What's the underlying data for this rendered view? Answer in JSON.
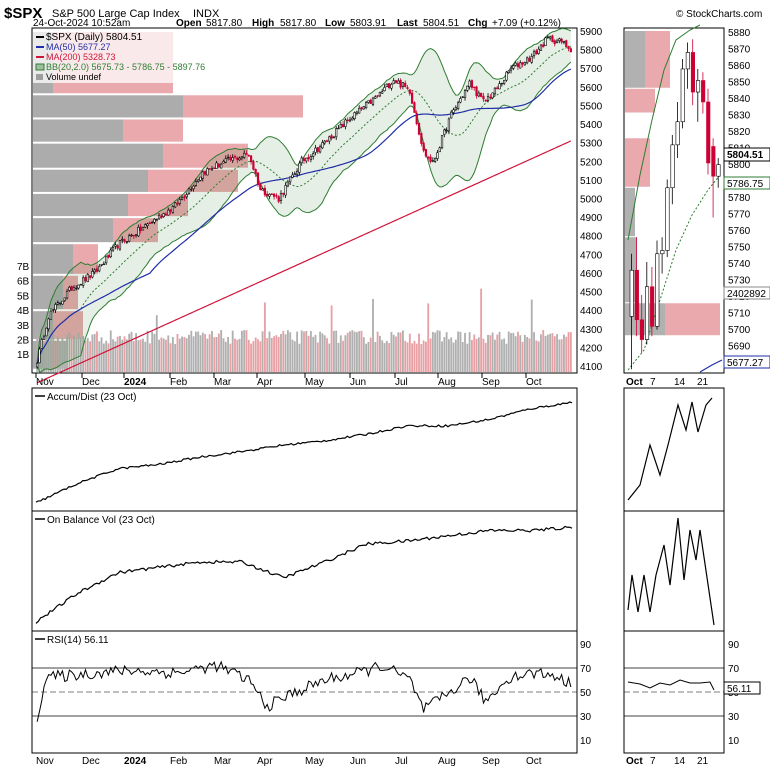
{
  "header": {
    "symbol": "$SPX",
    "name": "S&P 500 Large Cap Index",
    "exchange": "INDX",
    "date": "24-Oct-2024 10:52am",
    "open_label": "Open",
    "open": "5817.80",
    "high_label": "High",
    "high": "5817.80",
    "low_label": "Low",
    "low": "5803.91",
    "last_label": "Last",
    "last": "5804.51",
    "chg_label": "Chg",
    "chg": "+7.09 (+0.12%)",
    "watermark": "© StockCharts.com"
  },
  "legend": {
    "price": "$SPX (Daily) 5804.51",
    "ma50": "MA(50) 5677.27",
    "ma200": "MA(200) 5328.73",
    "bb": "BB(20,2.0) 5675.73 - 5786.75 - 5897.76",
    "volume": "Volume undef"
  },
  "colors": {
    "up": "#000000",
    "down": "#cc0033",
    "ma50": "#1f2ea8",
    "ma200": "#d1143a",
    "bb": "#2e7d32",
    "bbfill": "#2e7d32",
    "vbpGray": "#9e9e9e",
    "vbpRed": "#e8a0a4"
  },
  "main_panel": {
    "price_ticks": [
      "5900",
      "5800",
      "5700",
      "5600",
      "5500",
      "5400",
      "5300",
      "5200",
      "5100",
      "5000",
      "4900",
      "4800",
      "4700",
      "4600",
      "4500",
      "4400",
      "4300",
      "4200",
      "4100"
    ],
    "vol_ticks": [
      "7B",
      "6B",
      "5B",
      "4B",
      "3B",
      "2B",
      "1B"
    ],
    "months": [
      "Nov",
      "Dec",
      "2024",
      "Feb",
      "Mar",
      "Apr",
      "May",
      "Jun",
      "Jul",
      "Aug",
      "Sep",
      "Oct"
    ]
  },
  "zoom_panel": {
    "price_ticks": [
      "5880",
      "5870",
      "5860",
      "5850",
      "5840",
      "5830",
      "5820",
      "5810",
      "5800",
      "5790",
      "5780",
      "5770",
      "5760",
      "5750",
      "5740",
      "5730",
      "5720",
      "5710",
      "5700",
      "5690"
    ],
    "last_badge": "5804.51",
    "bb_mid_badge": "5786.75",
    "volume_badge": "2402892",
    "ma50_badge": "5677.27",
    "days": [
      "Oct",
      "7",
      "14",
      "21"
    ]
  },
  "accum_panel": {
    "label": "Accum/Dist (23 Oct)"
  },
  "obv_panel": {
    "label": "On Balance Vol (23 Oct)"
  },
  "rsi_panel": {
    "label": "RSI(14) 56.11",
    "ticks": [
      "90",
      "70",
      "50",
      "30",
      "10"
    ],
    "badge": "56.11"
  },
  "chart_data": [
    {
      "type": "candlestick",
      "title": "$SPX S&P 500 Large Cap Index",
      "ylim": [
        4100,
        5900
      ],
      "series": [
        {
          "name": "$SPX (Daily)",
          "dates": [
            "Nov",
            "Dec",
            "Jan",
            "Feb",
            "Mar",
            "Apr",
            "May",
            "Jun",
            "Jul",
            "Aug",
            "Sep",
            "Oct",
            "24-Oct"
          ],
          "close": [
            4370,
            4600,
            4780,
            4980,
            5200,
            5140,
            5050,
            5350,
            5560,
            5300,
            5560,
            5800,
            5804.51
          ]
        },
        {
          "name": "MA(50)",
          "last": 5677.27
        },
        {
          "name": "MA(200)",
          "last": 5328.73
        },
        {
          "name": "BB(20,2.0)",
          "lower": 5675.73,
          "middle": 5786.75,
          "upper": 5897.76
        }
      ]
    },
    {
      "type": "line",
      "title": "Accum/Dist (23 Oct)",
      "values": [
        0.02,
        0.2,
        0.34,
        0.38,
        0.45,
        0.5,
        0.56,
        0.6,
        0.66,
        0.74,
        0.74,
        0.8,
        0.9,
        0.96
      ]
    },
    {
      "type": "line",
      "title": "On Balance Vol (23 Oct)",
      "values": [
        0.03,
        0.3,
        0.5,
        0.55,
        0.6,
        0.6,
        0.45,
        0.6,
        0.77,
        0.8,
        0.85,
        0.9,
        0.9,
        0.93
      ]
    },
    {
      "type": "line",
      "title": "RSI(14)",
      "ylim": [
        0,
        100
      ],
      "last": 56.11
    }
  ]
}
